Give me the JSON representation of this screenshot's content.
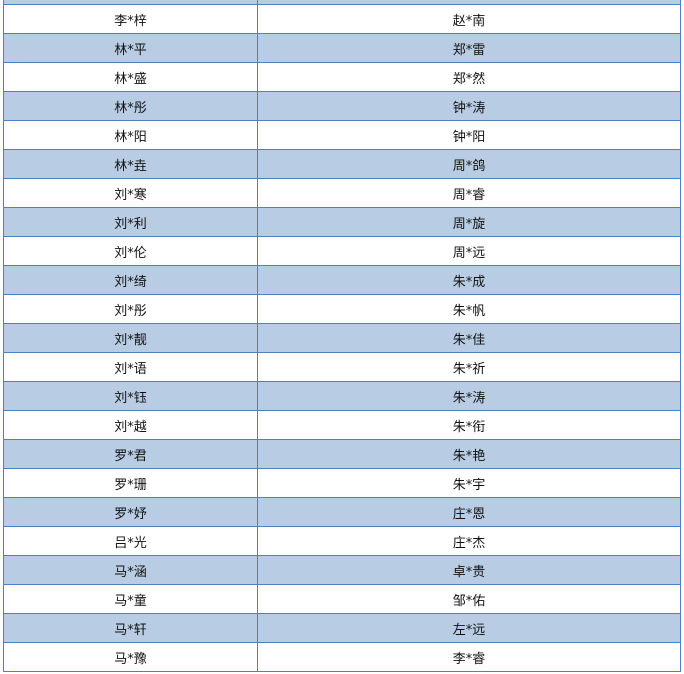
{
  "colors": {
    "row_alt": "#b8cce4",
    "border": "#4f81bd"
  },
  "rows": [
    [
      "",
      ""
    ],
    [
      "李*梓",
      "赵*南"
    ],
    [
      "林*平",
      "郑*雷"
    ],
    [
      "林*盛",
      "郑*然"
    ],
    [
      "林*彤",
      "钟*涛"
    ],
    [
      "林*阳",
      "钟*阳"
    ],
    [
      "林*垚",
      "周*鸽"
    ],
    [
      "刘*寒",
      "周*睿"
    ],
    [
      "刘*利",
      "周*旋"
    ],
    [
      "刘*伦",
      "周*远"
    ],
    [
      "刘*绮",
      "朱*成"
    ],
    [
      "刘*彤",
      "朱*帆"
    ],
    [
      "刘*靓",
      "朱*佳"
    ],
    [
      "刘*语",
      "朱*祈"
    ],
    [
      "刘*钰",
      "朱*涛"
    ],
    [
      "刘*越",
      "朱*衔"
    ],
    [
      "罗*君",
      "朱*艳"
    ],
    [
      "罗*珊",
      "朱*宇"
    ],
    [
      "罗*妤",
      "庄*恩"
    ],
    [
      "吕*光",
      "庄*杰"
    ],
    [
      "马*涵",
      "卓*贵"
    ],
    [
      "马*童",
      "邹*佑"
    ],
    [
      "马*轩",
      "左*远"
    ],
    [
      "马*豫",
      "李*睿"
    ]
  ]
}
